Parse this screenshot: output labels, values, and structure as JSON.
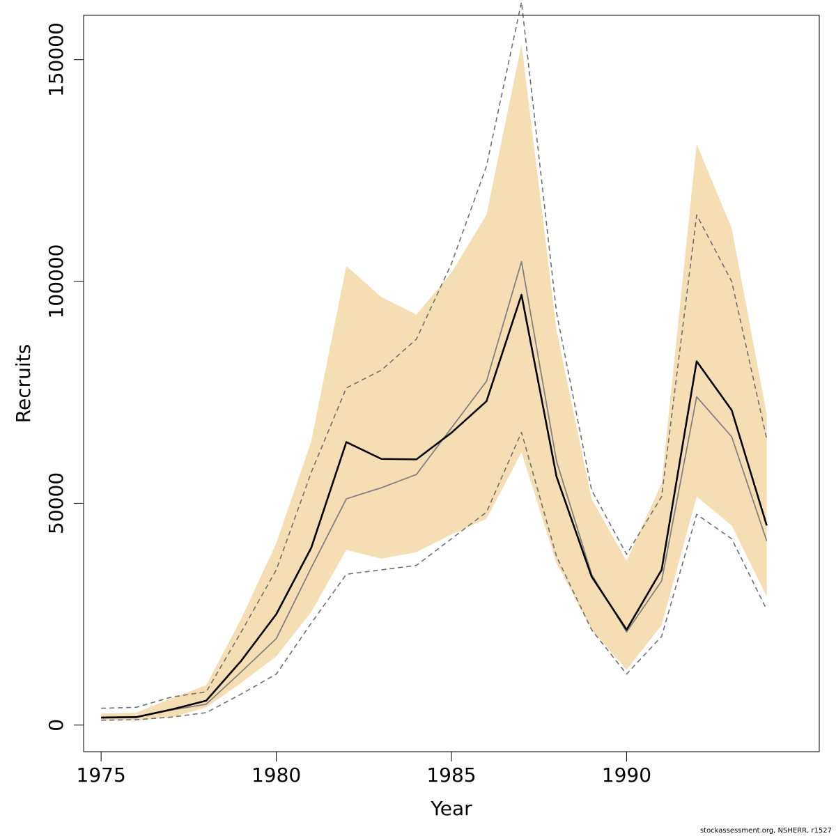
{
  "chart_data": {
    "type": "line",
    "xlabel": "Year",
    "ylabel": "Recruits",
    "xlim": [
      1974.5,
      1995.5
    ],
    "ylim": [
      -6000,
      160000
    ],
    "xticks": [
      1975,
      1980,
      1985,
      1990
    ],
    "yticks": [
      0,
      50000,
      100000,
      150000
    ],
    "grid": false,
    "legend": "none",
    "colors": {
      "band": "#f5deb3",
      "main": "#000000",
      "secondary": "#808080",
      "dashed": "#707070"
    },
    "x": [
      1975,
      1976,
      1977,
      1978,
      1979,
      1980,
      1981,
      1982,
      1983,
      1984,
      1985,
      1986,
      1987,
      1988,
      1989,
      1990,
      1991,
      1992,
      1993,
      1994
    ],
    "series": [
      {
        "role": "band_upper",
        "values": [
          2600,
          2800,
          6000,
          9000,
          24000,
          41000,
          64000,
          103500,
          96500,
          92500,
          102000,
          115000,
          153500,
          89000,
          51000,
          37000,
          54500,
          131000,
          112000,
          70000
        ]
      },
      {
        "role": "band_lower",
        "values": [
          1000,
          1100,
          1700,
          4000,
          9500,
          15500,
          25500,
          39500,
          37500,
          39000,
          43000,
          46500,
          61500,
          36500,
          21500,
          12500,
          22500,
          51500,
          45000,
          29000
        ]
      },
      {
        "role": "main",
        "values": [
          1700,
          1800,
          3500,
          5500,
          14500,
          25000,
          40000,
          63800,
          60000,
          59900,
          65900,
          73000,
          97000,
          56000,
          33500,
          21500,
          35000,
          82000,
          71000,
          45000
        ]
      },
      {
        "role": "secondary",
        "values": [
          1600,
          1700,
          3400,
          4700,
          12000,
          19500,
          35500,
          51000,
          53500,
          56500,
          67000,
          77500,
          104500,
          59500,
          34000,
          21000,
          32500,
          74000,
          65000,
          41500
        ]
      },
      {
        "role": "dashed_upper",
        "values": [
          3800,
          4000,
          6300,
          7500,
          21000,
          35000,
          57000,
          76000,
          80000,
          87000,
          104000,
          126000,
          163000,
          93000,
          53000,
          38500,
          51500,
          115000,
          100000,
          64500
        ]
      },
      {
        "role": "dashed_lower",
        "values": [
          1100,
          1200,
          1800,
          2800,
          7000,
          11500,
          23000,
          34000,
          35000,
          36000,
          42000,
          48000,
          66000,
          38000,
          21500,
          11500,
          20000,
          47500,
          42000,
          26000
        ]
      }
    ]
  },
  "credit": "stockassessment.org, NSHERR, r1527"
}
